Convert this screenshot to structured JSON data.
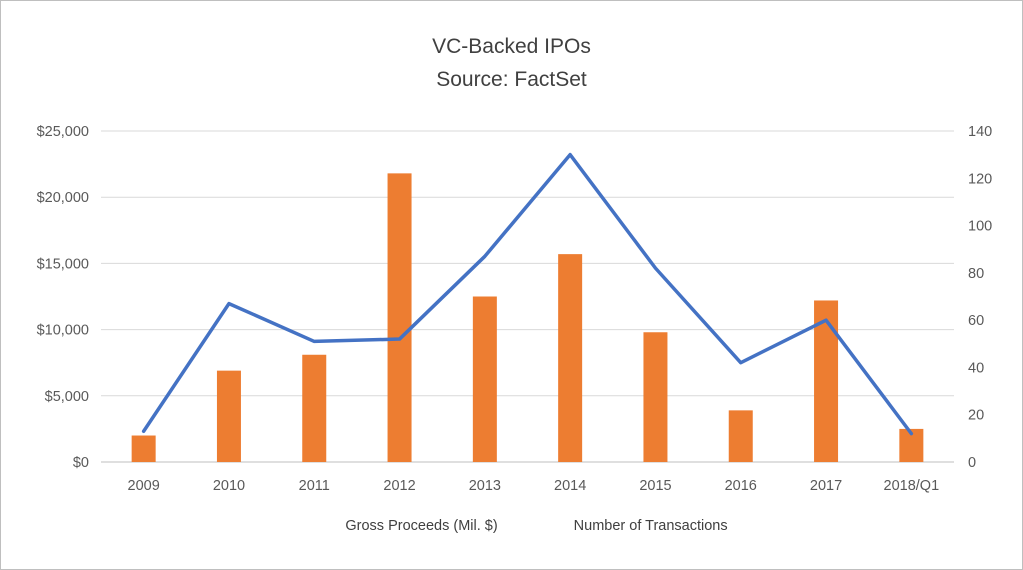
{
  "title": {
    "line1": "VC-Backed IPOs",
    "line2": "Source: FactSet"
  },
  "legend": {
    "bars": "Gross Proceeds (Mil. $)",
    "line": "Number of Transactions"
  },
  "chart_data": {
    "type": "bar+line combo",
    "title": "VC-Backed IPOs",
    "subtitle": "Source: FactSet",
    "categories": [
      "2009",
      "2010",
      "2011",
      "2012",
      "2013",
      "2014",
      "2015",
      "2016",
      "2017",
      "2018/Q1"
    ],
    "series": [
      {
        "name": "Gross Proceeds (Mil. $)",
        "type": "bar",
        "axis": "left",
        "color": "#ED7D31",
        "values": [
          2000,
          6900,
          8100,
          21800,
          12500,
          15700,
          9800,
          3900,
          12200,
          2500
        ]
      },
      {
        "name": "Number of Transactions",
        "type": "line",
        "axis": "right",
        "color": "#4472C4",
        "values": [
          13,
          67,
          51,
          52,
          87,
          130,
          82,
          42,
          60,
          12
        ]
      }
    ],
    "left_axis": {
      "min": 0,
      "max": 25000,
      "tick_values": [
        0,
        5000,
        10000,
        15000,
        20000,
        25000
      ],
      "tick_labels": [
        "$0",
        "$5,000",
        "$10,000",
        "$15,000",
        "$20,000",
        "$25,000"
      ]
    },
    "right_axis": {
      "min": 0,
      "max": 140,
      "tick_values": [
        0,
        20,
        40,
        60,
        80,
        100,
        120,
        140
      ],
      "tick_labels": [
        "0",
        "20",
        "40",
        "60",
        "80",
        "100",
        "120",
        "140"
      ]
    },
    "grid": "horizontal",
    "legend_position": "bottom",
    "colors": {
      "bar": "#ED7D31",
      "line": "#4472C4",
      "grid": "#D9D9D9",
      "axis_line": "#BFBFBF",
      "axis_text": "#595959",
      "title_text": "#404040"
    }
  }
}
